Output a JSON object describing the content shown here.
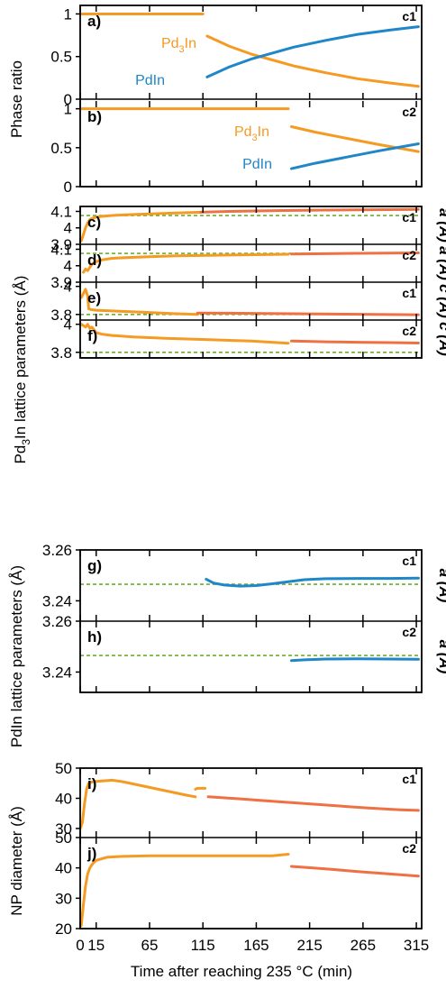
{
  "figure": {
    "x_axis_title": "Time after reaching 235 °C (min)",
    "x_ticks": [
      "0",
      "15",
      "65",
      "115",
      "165",
      "215",
      "265",
      "315"
    ],
    "group_labels": {
      "phase_ratio": "Phase ratio",
      "pd3in_main": "Pd",
      "pd3in_sub": "3",
      "pd3in_rest": "In lattice parameters  (Å)",
      "pdin": "PdIn lattice parameters  (Å)",
      "np": "NP diameter (Å)"
    }
  },
  "colors": {
    "pd3in": "#F59A23",
    "pd3in_late": "#EE7043",
    "pdin": "#1F86C8",
    "reference": "#6BAF2E",
    "axis": "#000000"
  },
  "chart_data": [
    {
      "id": "a",
      "type": "line",
      "panel_label": "a)",
      "sample": "c1",
      "ylim": [
        0,
        1.1
      ],
      "yticks": [
        "0",
        "0.5",
        "1"
      ],
      "annotations": [
        {
          "text_main": "Pd",
          "text_sub": "3",
          "text_rest": "In",
          "color": "pd3in"
        },
        {
          "text_main": "PdIn",
          "color": "pdin"
        }
      ],
      "series": [
        {
          "color": "pd3in",
          "x": [
            0,
            115
          ],
          "y": [
            1,
            1
          ]
        },
        {
          "color": "pd3in",
          "x": [
            119,
            140,
            160,
            180,
            200,
            230,
            260,
            290,
            317
          ],
          "y": [
            0.74,
            0.62,
            0.53,
            0.46,
            0.39,
            0.31,
            0.24,
            0.19,
            0.15
          ]
        },
        {
          "color": "pdin",
          "x": [
            119,
            140,
            160,
            180,
            200,
            230,
            260,
            290,
            317
          ],
          "y": [
            0.26,
            0.38,
            0.47,
            0.54,
            0.61,
            0.69,
            0.76,
            0.81,
            0.85
          ]
        }
      ]
    },
    {
      "id": "b",
      "type": "line",
      "panel_label": "b)",
      "sample": "c2",
      "ylim": [
        0,
        1.1
      ],
      "yticks": [
        "0",
        "0.5",
        "1"
      ],
      "annotations": [
        {
          "text_main": "Pd",
          "text_sub": "3",
          "text_rest": "In",
          "color": "pd3in"
        },
        {
          "text_main": "PdIn",
          "color": "pdin"
        }
      ],
      "series": [
        {
          "color": "pd3in",
          "x": [
            0,
            195
          ],
          "y": [
            1,
            1
          ]
        },
        {
          "color": "pd3in",
          "x": [
            198,
            220,
            250,
            280,
            317
          ],
          "y": [
            0.77,
            0.7,
            0.62,
            0.54,
            0.45
          ]
        },
        {
          "color": "pdin",
          "x": [
            198,
            220,
            250,
            280,
            317
          ],
          "y": [
            0.23,
            0.3,
            0.38,
            0.46,
            0.55
          ]
        }
      ]
    },
    {
      "id": "c",
      "type": "line",
      "panel_label": "c)",
      "sample": "c1",
      "ylim": [
        3.9,
        4.13
      ],
      "yticks": [
        "3.9",
        "4",
        "4.1"
      ],
      "right_label": "a (Å)",
      "reference_y": 4.075,
      "series": [
        {
          "color": "pd3in",
          "x": [
            1,
            3,
            5,
            7,
            9,
            12,
            15,
            20,
            30,
            45,
            65,
            90,
            113
          ],
          "y": [
            3.92,
            3.96,
            4.0,
            4.03,
            4.05,
            4.06,
            4.065,
            4.07,
            4.075,
            4.08,
            4.085,
            4.09,
            4.095
          ]
        },
        {
          "color": "pd3in_late",
          "x": [
            113,
            140,
            170,
            200,
            230,
            260,
            290,
            317
          ],
          "y": [
            4.095,
            4.1,
            4.103,
            4.106,
            4.108,
            4.11,
            4.111,
            4.112
          ]
        }
      ]
    },
    {
      "id": "d",
      "type": "line",
      "panel_label": "d)",
      "sample": "c2",
      "ylim": [
        3.9,
        4.13
      ],
      "yticks": [
        "3.9",
        "4",
        "4.1"
      ],
      "right_label": "a (Å)",
      "reference_y": 4.075,
      "series": [
        {
          "color": "pd3in",
          "x": [
            3,
            5,
            7,
            9,
            10,
            12,
            15,
            20,
            30,
            45,
            65,
            90,
            120,
            150,
            180,
            195
          ],
          "y": [
            3.96,
            3.98,
            3.97,
            3.99,
            4.0,
            4.015,
            4.025,
            4.035,
            4.045,
            4.05,
            4.055,
            4.06,
            4.063,
            4.066,
            4.068,
            4.07
          ]
        },
        {
          "color": "pd3in_late",
          "x": [
            198,
            230,
            260,
            290,
            317
          ],
          "y": [
            4.071,
            4.073,
            4.075,
            4.077,
            4.078
          ]
        }
      ]
    },
    {
      "id": "e",
      "type": "line",
      "panel_label": "e)",
      "sample": "c1",
      "ylim": [
        3.76,
        4.03
      ],
      "yticks": [
        "3.8",
        "4"
      ],
      "right_label": "c (Å)",
      "reference_y": 3.8,
      "series": [
        {
          "color": "pd3in",
          "x": [
            1,
            3,
            5,
            7,
            8,
            10,
            15,
            30,
            60,
            90,
            110
          ],
          "y": [
            3.92,
            3.95,
            3.98,
            3.93,
            3.84,
            3.835,
            3.83,
            3.825,
            3.815,
            3.805,
            3.8
          ]
        },
        {
          "color": "pd3in_late",
          "x": [
            110,
            150,
            200,
            250,
            317
          ],
          "y": [
            3.81,
            3.808,
            3.805,
            3.802,
            3.798
          ]
        }
      ]
    },
    {
      "id": "f",
      "type": "line",
      "panel_label": "f)",
      "sample": "c2",
      "ylim": [
        3.76,
        4.03
      ],
      "yticks": [
        "3.8",
        "4"
      ],
      "right_label": "c (Å)",
      "reference_y": 3.8,
      "series": [
        {
          "color": "pd3in",
          "x": [
            1,
            3,
            5,
            7,
            9,
            11,
            13,
            15,
            20,
            30,
            50,
            80,
            120,
            160,
            195
          ],
          "y": [
            4.0,
            3.99,
            3.98,
            4.0,
            3.97,
            3.98,
            3.96,
            3.94,
            3.93,
            3.92,
            3.91,
            3.9,
            3.89,
            3.88,
            3.865
          ]
        },
        {
          "color": "pd3in_late",
          "x": [
            198,
            230,
            260,
            290,
            317
          ],
          "y": [
            3.88,
            3.875,
            3.872,
            3.869,
            3.866
          ]
        }
      ]
    },
    {
      "id": "g",
      "type": "line",
      "panel_label": "g)",
      "sample": "c1",
      "ylim": [
        3.232,
        3.26
      ],
      "yticks": [
        "3.24",
        "3.26"
      ],
      "right_label": "a (Å)",
      "reference_y": 3.2465,
      "series": [
        {
          "color": "pdin",
          "x": [
            118,
            125,
            135,
            150,
            165,
            180,
            195,
            210,
            230,
            260,
            290,
            317
          ],
          "y": [
            3.2485,
            3.247,
            3.2462,
            3.2458,
            3.246,
            3.2467,
            3.2475,
            3.2483,
            3.2487,
            3.2488,
            3.2488,
            3.2489
          ]
        }
      ]
    },
    {
      "id": "h",
      "type": "line",
      "panel_label": "h)",
      "sample": "c2",
      "ylim": [
        3.232,
        3.26
      ],
      "yticks": [
        "3.24",
        "3.26"
      ],
      "right_label": "a (Å)",
      "reference_y": 3.2465,
      "series": [
        {
          "color": "pdin",
          "x": [
            198,
            210,
            230,
            260,
            290,
            317
          ],
          "y": [
            3.2445,
            3.2448,
            3.2451,
            3.2452,
            3.2451,
            3.245
          ]
        }
      ]
    },
    {
      "id": "i",
      "type": "line",
      "panel_label": "i)",
      "sample": "c1",
      "ylim": [
        27,
        50
      ],
      "yticks": [
        "30",
        "40",
        "50"
      ],
      "series": [
        {
          "color": "pd3in",
          "x": [
            0,
            2,
            4,
            6,
            8,
            10,
            15,
            30,
            40,
            60,
            80,
            100,
            108
          ],
          "y": [
            30,
            32,
            38,
            43,
            45,
            45.3,
            45.6,
            46,
            45.5,
            44,
            42.5,
            41,
            40.5
          ]
        },
        {
          "color": "pd3in",
          "x": [
            108,
            110,
            117
          ],
          "y": [
            43,
            43.3,
            43.3
          ]
        },
        {
          "color": "pd3in_late",
          "x": [
            120,
            150,
            180,
            210,
            240,
            270,
            300,
            317
          ],
          "y": [
            40.5,
            39.8,
            39,
            38.3,
            37.5,
            36.8,
            36.2,
            36
          ]
        }
      ]
    },
    {
      "id": "j",
      "type": "line",
      "panel_label": "j)",
      "sample": "c2",
      "ylim": [
        20,
        50
      ],
      "yticks": [
        "20",
        "30",
        "40",
        "50"
      ],
      "series": [
        {
          "color": "pd3in",
          "x": [
            1,
            3,
            5,
            7,
            9,
            12,
            15,
            25,
            40,
            65,
            100,
            140,
            180,
            195
          ],
          "y": [
            21,
            28,
            34,
            38,
            40,
            41.5,
            42.5,
            43.5,
            43.8,
            44,
            44,
            44,
            44,
            44.5
          ]
        },
        {
          "color": "pd3in_late",
          "x": [
            198,
            230,
            260,
            290,
            317
          ],
          "y": [
            40.5,
            39.7,
            38.8,
            38,
            37.3
          ]
        }
      ]
    }
  ]
}
